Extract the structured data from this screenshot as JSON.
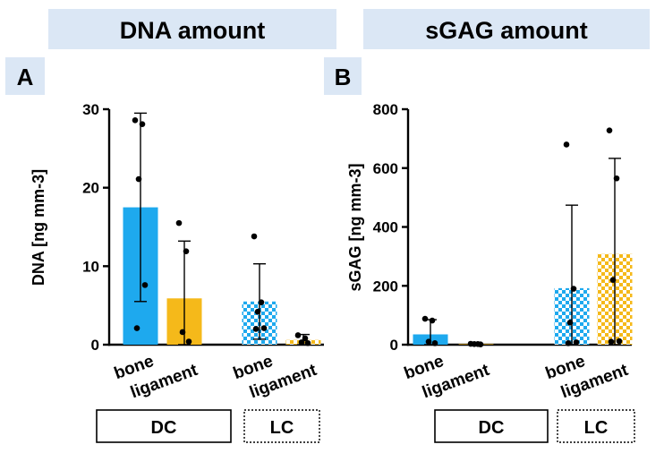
{
  "colors": {
    "blue": "#1ea9ee",
    "orange": "#f5b91a",
    "header_bg": "#dbe7f5"
  },
  "chart_data": [
    {
      "panel": "A",
      "title": "DNA amount",
      "type": "bar",
      "ylabel": "DNA [ng mm-3]",
      "ylim": [
        0,
        30
      ],
      "yticks": [
        "0",
        "10",
        "20",
        "30"
      ],
      "groups": [
        "DC",
        "LC"
      ],
      "categories": [
        "bone",
        "ligament",
        "bone",
        "ligament"
      ],
      "series": [
        {
          "name": "DC bone",
          "group": "DC",
          "category": "bone",
          "color": "blue",
          "pattern": "solid",
          "value": 17.5,
          "error": 12.0,
          "points": [
            28.6,
            28.1,
            21.1,
            7.6,
            2.1
          ]
        },
        {
          "name": "DC ligament",
          "group": "DC",
          "category": "ligament",
          "color": "orange",
          "pattern": "solid",
          "value": 5.9,
          "error": 7.3,
          "points": [
            15.5,
            11.9,
            1.6,
            0.4
          ]
        },
        {
          "name": "LC bone",
          "group": "LC",
          "category": "bone",
          "color": "blue",
          "pattern": "checker",
          "value": 5.5,
          "error": 4.8,
          "points": [
            13.8,
            5.4,
            4.2,
            2.1,
            2.0
          ]
        },
        {
          "name": "LC ligament",
          "group": "LC",
          "category": "ligament",
          "color": "orange",
          "pattern": "checker",
          "value": 0.6,
          "error": 0.7,
          "points": [
            1.2,
            0.8,
            0.3,
            0.2
          ]
        }
      ]
    },
    {
      "panel": "B",
      "title": "sGAG amount",
      "type": "bar",
      "ylabel": "sGAG [ng mm-3]",
      "ylim": [
        0,
        800
      ],
      "yticks": [
        "0",
        "200",
        "400",
        "600",
        "800"
      ],
      "groups": [
        "DC",
        "LC"
      ],
      "categories": [
        "bone",
        "ligament",
        "bone",
        "ligament"
      ],
      "series": [
        {
          "name": "DC bone",
          "group": "DC",
          "category": "bone",
          "color": "blue",
          "pattern": "solid",
          "value": 35,
          "error": 50,
          "points": [
            88,
            82,
            10,
            5
          ]
        },
        {
          "name": "DC ligament",
          "group": "DC",
          "category": "ligament",
          "color": "orange",
          "pattern": "solid",
          "value": 2,
          "error": 2,
          "points": [
            3,
            2,
            2,
            1
          ]
        },
        {
          "name": "LC bone",
          "group": "LC",
          "category": "bone",
          "color": "blue",
          "pattern": "checker",
          "value": 192,
          "error": 282,
          "points": [
            680,
            190,
            75,
            8,
            5
          ]
        },
        {
          "name": "LC ligament",
          "group": "LC",
          "category": "ligament",
          "color": "orange",
          "pattern": "checker",
          "value": 308,
          "error": 325,
          "points": [
            728,
            565,
            220,
            12,
            10
          ]
        }
      ]
    }
  ]
}
